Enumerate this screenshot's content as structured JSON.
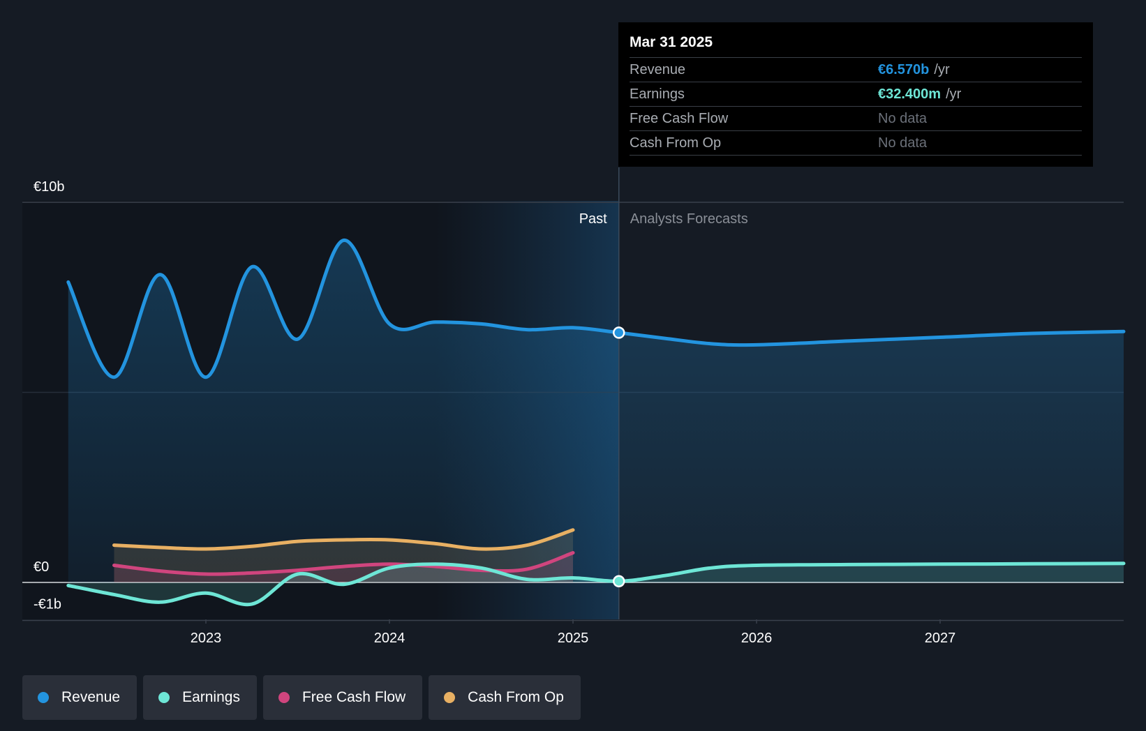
{
  "colors": {
    "revenue": "#2394df",
    "earnings": "#6ee6d6",
    "free_cash_flow": "#d0457e",
    "cash_from_op": "#e8b063",
    "background": "#151b24",
    "tooltip_bg": "#000000"
  },
  "tooltip": {
    "date": "Mar 31 2025",
    "rows": [
      {
        "name": "Revenue",
        "value": "€6.570b",
        "unit": "/yr",
        "color": "#2394df"
      },
      {
        "name": "Earnings",
        "value": "€32.400m",
        "unit": "/yr",
        "color": "#6ee6d6"
      },
      {
        "name": "Free Cash Flow",
        "value": "No data",
        "unit": ""
      },
      {
        "name": "Cash From Op",
        "value": "No data",
        "unit": ""
      }
    ]
  },
  "legend": [
    {
      "label": "Revenue",
      "color": "#2394df"
    },
    {
      "label": "Earnings",
      "color": "#6ee6d6"
    },
    {
      "label": "Free Cash Flow",
      "color": "#d0457e"
    },
    {
      "label": "Cash From Op",
      "color": "#e8b063"
    }
  ],
  "chart_data": {
    "type": "line",
    "title": "",
    "xlabel": "",
    "ylabel": "",
    "x_ticks": [
      2023,
      2024,
      2025,
      2026,
      2027
    ],
    "x_tick_labels": [
      "2023",
      "2024",
      "2025",
      "2026",
      "2027"
    ],
    "y_tick_labels": [
      "€10b",
      "€0",
      "-€1b"
    ],
    "ylim": [
      -1,
      10
    ],
    "xlim": [
      2022.0,
      2028.0
    ],
    "past_forecast_split": 2025.25,
    "highlight_start": 2024.25,
    "past_label": "Past",
    "forecast_label": "Analysts Forecasts",
    "series": [
      {
        "name": "Revenue",
        "key": "revenue",
        "points": [
          [
            2022.25,
            7.9
          ],
          [
            2022.5,
            5.4
          ],
          [
            2022.75,
            8.1
          ],
          [
            2023.0,
            5.4
          ],
          [
            2023.25,
            8.3
          ],
          [
            2023.5,
            6.4
          ],
          [
            2023.75,
            9.0
          ],
          [
            2024.0,
            6.8
          ],
          [
            2024.25,
            6.85
          ],
          [
            2024.5,
            6.8
          ],
          [
            2024.75,
            6.65
          ],
          [
            2025.0,
            6.7
          ],
          [
            2025.25,
            6.57
          ],
          [
            2025.5,
            6.42
          ],
          [
            2025.75,
            6.28
          ],
          [
            2026.0,
            6.25
          ],
          [
            2026.5,
            6.35
          ],
          [
            2027.0,
            6.45
          ],
          [
            2027.5,
            6.55
          ],
          [
            2028.0,
            6.6
          ]
        ]
      },
      {
        "name": "Earnings",
        "key": "earnings",
        "points": [
          [
            2022.25,
            -0.08
          ],
          [
            2022.5,
            -0.32
          ],
          [
            2022.75,
            -0.52
          ],
          [
            2023.0,
            -0.28
          ],
          [
            2023.25,
            -0.57
          ],
          [
            2023.5,
            0.22
          ],
          [
            2023.75,
            -0.05
          ],
          [
            2024.0,
            0.38
          ],
          [
            2024.25,
            0.48
          ],
          [
            2024.5,
            0.38
          ],
          [
            2024.75,
            0.08
          ],
          [
            2025.0,
            0.12
          ],
          [
            2025.25,
            0.032
          ],
          [
            2025.5,
            0.18
          ],
          [
            2025.75,
            0.38
          ],
          [
            2026.0,
            0.45
          ],
          [
            2026.5,
            0.47
          ],
          [
            2027.0,
            0.48
          ],
          [
            2027.5,
            0.49
          ],
          [
            2028.0,
            0.5
          ]
        ]
      },
      {
        "name": "Free Cash Flow",
        "key": "free_cash_flow",
        "points": [
          [
            2022.5,
            0.45
          ],
          [
            2022.75,
            0.3
          ],
          [
            2023.0,
            0.22
          ],
          [
            2023.25,
            0.25
          ],
          [
            2023.5,
            0.32
          ],
          [
            2023.75,
            0.42
          ],
          [
            2024.0,
            0.48
          ],
          [
            2024.25,
            0.42
          ],
          [
            2024.5,
            0.32
          ],
          [
            2024.75,
            0.35
          ],
          [
            2025.0,
            0.78
          ]
        ]
      },
      {
        "name": "Cash From Op",
        "key": "cash_from_op",
        "points": [
          [
            2022.5,
            0.98
          ],
          [
            2022.75,
            0.92
          ],
          [
            2023.0,
            0.88
          ],
          [
            2023.25,
            0.95
          ],
          [
            2023.5,
            1.08
          ],
          [
            2023.75,
            1.12
          ],
          [
            2024.0,
            1.12
          ],
          [
            2024.25,
            1.02
          ],
          [
            2024.5,
            0.88
          ],
          [
            2024.75,
            0.98
          ],
          [
            2025.0,
            1.38
          ]
        ]
      }
    ]
  }
}
